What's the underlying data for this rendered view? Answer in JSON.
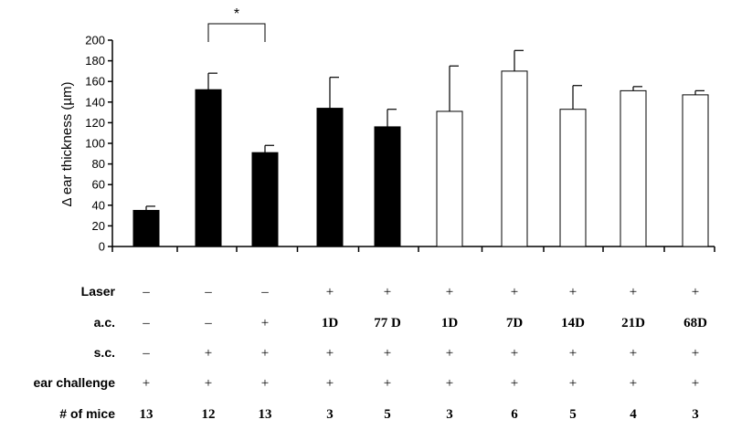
{
  "chart_data": {
    "type": "bar",
    "title": "",
    "xlabel": "",
    "ylabel": "Δ ear thickness (µm)",
    "ylim": [
      0,
      200
    ],
    "yticks": [
      0,
      20,
      40,
      60,
      80,
      100,
      120,
      140,
      160,
      180,
      200
    ],
    "grid": false,
    "legend": "none",
    "bars": [
      {
        "value": 35,
        "error": 4,
        "fill": "filled"
      },
      {
        "value": 152,
        "error": 16,
        "fill": "filled"
      },
      {
        "value": 91,
        "error": 7,
        "fill": "filled"
      },
      {
        "value": 134,
        "error": 30,
        "fill": "filled"
      },
      {
        "value": 116,
        "error": 17,
        "fill": "filled"
      },
      {
        "value": 131,
        "error": 44,
        "fill": "open"
      },
      {
        "value": 170,
        "error": 20,
        "fill": "open"
      },
      {
        "value": 133,
        "error": 23,
        "fill": "open"
      },
      {
        "value": 151,
        "error": 4,
        "fill": "open"
      },
      {
        "value": 147,
        "error": 4,
        "fill": "open"
      }
    ],
    "significance": {
      "from_bar": 1,
      "to_bar": 2,
      "label": "*"
    },
    "table": {
      "rows": [
        {
          "label": "Laser",
          "cells": [
            "–",
            "–",
            "–",
            "+",
            "+",
            "+",
            "+",
            "+",
            "+",
            "+"
          ]
        },
        {
          "label": "a.c.",
          "cells": [
            "–",
            "–",
            "+",
            "1D",
            "77 D",
            "1D",
            "7D",
            "14D",
            "21D",
            "68D"
          ]
        },
        {
          "label": "s.c.",
          "cells": [
            "–",
            "+",
            "+",
            "+",
            "+",
            "+",
            "+",
            "+",
            "+",
            "+"
          ]
        },
        {
          "label": "ear challenge",
          "cells": [
            "+",
            "+",
            "+",
            "+",
            "+",
            "+",
            "+",
            "+",
            "+",
            "+"
          ]
        },
        {
          "label": "# of mice",
          "cells": [
            "13",
            "12",
            "13",
            "3",
            "5",
            "3",
            "6",
            "5",
            "4",
            "3"
          ]
        }
      ]
    }
  },
  "colors": {
    "filled_bar": "#000000",
    "open_bar": "#ffffff",
    "stroke": "#000000"
  }
}
